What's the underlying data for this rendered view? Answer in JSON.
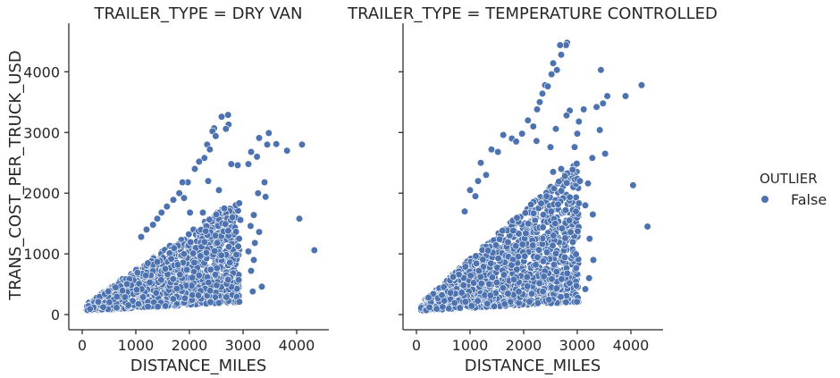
{
  "chart_data": {
    "type": "scatter",
    "facet_variable": "TRAILER_TYPE",
    "ylabel": "TRANS_COST_PER_TRUCK_USD",
    "ylim": [
      -250,
      4800
    ],
    "yticks": [
      0,
      1000,
      2000,
      3000,
      4000
    ],
    "xticks": [
      0,
      1000,
      2000,
      3000,
      4000
    ],
    "grid": false,
    "legend": {
      "title": "OUTLIER",
      "entries": [
        {
          "label": "False",
          "color": "#4c72b0"
        }
      ],
      "placement": "right"
    },
    "marker_color": "#4c72b0",
    "marker_edge_color": "#ffffff",
    "panels": [
      {
        "title": "TRAILER_TYPE = DRY VAN",
        "xlabel": "DISTANCE_MILES",
        "xlim": [
          -250,
          4600
        ],
        "bulk_max_cost_per_mile": 0.62,
        "outliers": [
          {
            "x": 2720,
            "y": 3290
          },
          {
            "x": 2600,
            "y": 3260
          },
          {
            "x": 2730,
            "y": 3130
          },
          {
            "x": 2680,
            "y": 3060
          },
          {
            "x": 2460,
            "y": 3070
          },
          {
            "x": 2430,
            "y": 3020
          },
          {
            "x": 2490,
            "y": 2940
          },
          {
            "x": 3480,
            "y": 2990
          },
          {
            "x": 3300,
            "y": 2910
          },
          {
            "x": 3620,
            "y": 2810
          },
          {
            "x": 3820,
            "y": 2700
          },
          {
            "x": 4100,
            "y": 2800
          },
          {
            "x": 3450,
            "y": 2800
          },
          {
            "x": 3150,
            "y": 2680
          },
          {
            "x": 3260,
            "y": 2600
          },
          {
            "x": 2900,
            "y": 2460
          },
          {
            "x": 3100,
            "y": 2480
          },
          {
            "x": 2780,
            "y": 2480
          },
          {
            "x": 2330,
            "y": 2800
          },
          {
            "x": 2380,
            "y": 2720
          },
          {
            "x": 2280,
            "y": 2580
          },
          {
            "x": 2180,
            "y": 2520
          },
          {
            "x": 2100,
            "y": 2400
          },
          {
            "x": 1970,
            "y": 2180
          },
          {
            "x": 1870,
            "y": 2180
          },
          {
            "x": 1810,
            "y": 2000
          },
          {
            "x": 1900,
            "y": 1920
          },
          {
            "x": 1700,
            "y": 1890
          },
          {
            "x": 1580,
            "y": 1780
          },
          {
            "x": 1480,
            "y": 1680
          },
          {
            "x": 1400,
            "y": 1580
          },
          {
            "x": 1320,
            "y": 1480
          },
          {
            "x": 1200,
            "y": 1400
          },
          {
            "x": 1100,
            "y": 1280
          },
          {
            "x": 2010,
            "y": 1680
          },
          {
            "x": 2250,
            "y": 1680
          },
          {
            "x": 3400,
            "y": 2180
          },
          {
            "x": 3280,
            "y": 2000
          },
          {
            "x": 3420,
            "y": 1940
          },
          {
            "x": 3200,
            "y": 1640
          },
          {
            "x": 2950,
            "y": 1560
          },
          {
            "x": 3140,
            "y": 1460
          },
          {
            "x": 4050,
            "y": 1580
          },
          {
            "x": 4330,
            "y": 1060
          },
          {
            "x": 3300,
            "y": 1360
          },
          {
            "x": 3220,
            "y": 1180
          },
          {
            "x": 3100,
            "y": 1040
          },
          {
            "x": 3200,
            "y": 900
          },
          {
            "x": 3150,
            "y": 720
          },
          {
            "x": 3350,
            "y": 460
          },
          {
            "x": 3180,
            "y": 380
          },
          {
            "x": 2650,
            "y": 1750
          },
          {
            "x": 2800,
            "y": 1600
          },
          {
            "x": 2500,
            "y": 1650
          },
          {
            "x": 2550,
            "y": 2050
          },
          {
            "x": 2350,
            "y": 2200
          }
        ]
      },
      {
        "title": "TRAILER_TYPE = TEMPERATURE CONTROLLED",
        "xlabel": "DISTANCE_MILES",
        "xlim": [
          -250,
          4600
        ],
        "bulk_max_cost_per_mile": 0.8,
        "outliers": [
          {
            "x": 2810,
            "y": 4480
          },
          {
            "x": 2790,
            "y": 4440
          },
          {
            "x": 2680,
            "y": 4440
          },
          {
            "x": 2700,
            "y": 4280
          },
          {
            "x": 2550,
            "y": 4140
          },
          {
            "x": 2620,
            "y": 4030
          },
          {
            "x": 2520,
            "y": 3960
          },
          {
            "x": 2400,
            "y": 3780
          },
          {
            "x": 2450,
            "y": 3760
          },
          {
            "x": 2350,
            "y": 3640
          },
          {
            "x": 2300,
            "y": 3500
          },
          {
            "x": 2250,
            "y": 3380
          },
          {
            "x": 3440,
            "y": 4030
          },
          {
            "x": 3900,
            "y": 3600
          },
          {
            "x": 4200,
            "y": 3780
          },
          {
            "x": 3560,
            "y": 3600
          },
          {
            "x": 3480,
            "y": 3480
          },
          {
            "x": 3360,
            "y": 3420
          },
          {
            "x": 3120,
            "y": 3380
          },
          {
            "x": 2860,
            "y": 3360
          },
          {
            "x": 2800,
            "y": 3280
          },
          {
            "x": 3030,
            "y": 3180
          },
          {
            "x": 3420,
            "y": 3040
          },
          {
            "x": 2080,
            "y": 3200
          },
          {
            "x": 2180,
            "y": 3100
          },
          {
            "x": 2600,
            "y": 3060
          },
          {
            "x": 3000,
            "y": 2980
          },
          {
            "x": 1970,
            "y": 2980
          },
          {
            "x": 1620,
            "y": 2960
          },
          {
            "x": 1780,
            "y": 2900
          },
          {
            "x": 1860,
            "y": 2850
          },
          {
            "x": 2240,
            "y": 2860
          },
          {
            "x": 2500,
            "y": 2760
          },
          {
            "x": 3520,
            "y": 2650
          },
          {
            "x": 3280,
            "y": 2580
          },
          {
            "x": 2950,
            "y": 2760
          },
          {
            "x": 1400,
            "y": 2720
          },
          {
            "x": 1520,
            "y": 2680
          },
          {
            "x": 1200,
            "y": 2500
          },
          {
            "x": 1300,
            "y": 2300
          },
          {
            "x": 1150,
            "y": 2200
          },
          {
            "x": 1000,
            "y": 2050
          },
          {
            "x": 1100,
            "y": 1950
          },
          {
            "x": 900,
            "y": 1700
          },
          {
            "x": 4040,
            "y": 2130
          },
          {
            "x": 4310,
            "y": 1450
          },
          {
            "x": 3050,
            "y": 2200
          },
          {
            "x": 3200,
            "y": 2160
          },
          {
            "x": 3150,
            "y": 1800
          },
          {
            "x": 3290,
            "y": 1650
          },
          {
            "x": 3230,
            "y": 1250
          },
          {
            "x": 3300,
            "y": 900
          },
          {
            "x": 3220,
            "y": 600
          },
          {
            "x": 3150,
            "y": 420
          },
          {
            "x": 2700,
            "y": 2400
          },
          {
            "x": 2550,
            "y": 2350
          }
        ]
      }
    ]
  }
}
